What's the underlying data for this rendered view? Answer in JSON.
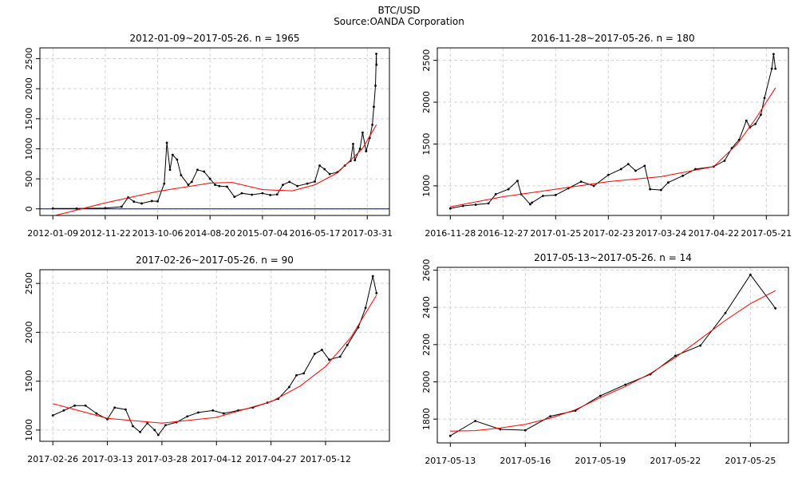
{
  "title": "BTC/USD",
  "subtitle": "Source:OANDA Corporation",
  "chart_data": [
    {
      "type": "line",
      "title": "2012-01-09~2017-05-26. n = 1965",
      "xlim": [
        "2012-01-09",
        "2017-05-26"
      ],
      "ylim": [
        -110,
        2680
      ],
      "xticks": [
        "2012-01-09",
        "2012-11-22",
        "2013-10-06",
        "2014-08-20",
        "2015-07-04",
        "2016-05-17",
        "2017-03-31"
      ],
      "yticks": [
        0,
        500,
        1000,
        1500,
        2000,
        2500
      ],
      "grid": true,
      "hline": 0,
      "hline_color": "#00008b",
      "series": [
        {
          "color": "#000000",
          "markers": true,
          "x": [
            "2012-01-09",
            "2012-06-01",
            "2012-11-22",
            "2013-03-01",
            "2013-04-10",
            "2013-05-15",
            "2013-07-01",
            "2013-09-01",
            "2013-10-06",
            "2013-11-15",
            "2013-12-01",
            "2013-12-20",
            "2014-01-05",
            "2014-02-01",
            "2014-02-25",
            "2014-04-10",
            "2014-05-01",
            "2014-06-05",
            "2014-07-15",
            "2014-08-20",
            "2014-09-20",
            "2014-10-15",
            "2014-12-01",
            "2015-01-15",
            "2015-03-01",
            "2015-05-01",
            "2015-07-04",
            "2015-08-20",
            "2015-10-01",
            "2015-11-05",
            "2015-12-15",
            "2016-02-01",
            "2016-04-01",
            "2016-05-17",
            "2016-06-15",
            "2016-07-15",
            "2016-08-15",
            "2016-10-01",
            "2016-11-15",
            "2016-12-20",
            "2017-01-04",
            "2017-01-15",
            "2017-02-15",
            "2017-03-03",
            "2017-03-24",
            "2017-04-15",
            "2017-05-01",
            "2017-05-10",
            "2017-05-20",
            "2017-05-25",
            "2017-05-26"
          ],
          "values": [
            7,
            5,
            12,
            35,
            190,
            120,
            90,
            130,
            125,
            420,
            1100,
            650,
            900,
            820,
            560,
            400,
            450,
            650,
            620,
            500,
            400,
            380,
            370,
            200,
            260,
            235,
            260,
            230,
            240,
            400,
            450,
            380,
            420,
            455,
            720,
            660,
            580,
            610,
            720,
            800,
            1080,
            810,
            1000,
            1270,
            960,
            1180,
            1400,
            1700,
            2050,
            2580,
            2400
          ]
        },
        {
          "color": "#ff0000",
          "markers": false,
          "x": [
            "2012-01-09",
            "2012-11-22",
            "2013-10-06",
            "2014-08-20",
            "2015-01-01",
            "2015-07-04",
            "2016-01-01",
            "2016-05-17",
            "2016-10-01",
            "2017-03-01",
            "2017-05-26"
          ],
          "values": [
            -120,
            100,
            290,
            430,
            440,
            320,
            300,
            400,
            600,
            1000,
            1400
          ]
        }
      ]
    },
    {
      "type": "line",
      "title": "2016-11-28~2017-05-26. n = 180",
      "xlim": [
        "2016-11-28",
        "2017-05-26"
      ],
      "ylim": [
        646,
        2649
      ],
      "xticks": [
        "2016-11-28",
        "2016-12-27",
        "2017-01-25",
        "2017-02-23",
        "2017-03-24",
        "2017-04-22",
        "2017-05-21"
      ],
      "yticks": [
        1000,
        1500,
        2000,
        2500
      ],
      "grid": true,
      "series": [
        {
          "color": "#000000",
          "markers": true,
          "x": [
            "2016-11-28",
            "2016-12-05",
            "2016-12-12",
            "2016-12-19",
            "2016-12-23",
            "2016-12-30",
            "2017-01-04",
            "2017-01-06",
            "2017-01-11",
            "2017-01-12",
            "2017-01-18",
            "2017-01-25",
            "2017-02-01",
            "2017-02-08",
            "2017-02-15",
            "2017-02-23",
            "2017-03-02",
            "2017-03-06",
            "2017-03-10",
            "2017-03-15",
            "2017-03-18",
            "2017-03-24",
            "2017-03-28",
            "2017-04-05",
            "2017-04-12",
            "2017-04-22",
            "2017-04-28",
            "2017-05-02",
            "2017-05-06",
            "2017-05-10",
            "2017-05-12",
            "2017-05-15",
            "2017-05-18",
            "2017-05-20",
            "2017-05-24",
            "2017-05-25",
            "2017-05-26"
          ],
          "values": [
            730,
            760,
            775,
            790,
            900,
            960,
            1060,
            900,
            780,
            800,
            880,
            890,
            970,
            1050,
            1000,
            1130,
            1200,
            1260,
            1180,
            1240,
            960,
            950,
            1040,
            1120,
            1200,
            1230,
            1300,
            1450,
            1550,
            1780,
            1700,
            1740,
            1850,
            2050,
            2400,
            2575,
            2400
          ]
        },
        {
          "color": "#ff0000",
          "markers": false,
          "x": [
            "2016-11-28",
            "2016-12-27",
            "2017-01-25",
            "2017-02-23",
            "2017-03-24",
            "2017-04-22",
            "2017-05-05",
            "2017-05-15",
            "2017-05-26"
          ],
          "values": [
            750,
            870,
            960,
            1050,
            1110,
            1230,
            1500,
            1800,
            2170
          ]
        }
      ]
    },
    {
      "type": "line",
      "title": "2017-02-26~2017-05-26. n = 90",
      "xlim": [
        "2017-02-26",
        "2017-05-26"
      ],
      "ylim": [
        885,
        2640
      ],
      "xticks": [
        "2017-02-26",
        "2017-03-13",
        "2017-03-28",
        "2017-04-12",
        "2017-04-27",
        "2017-05-12"
      ],
      "yticks": [
        1000,
        1500,
        2000,
        2500
      ],
      "grid": true,
      "series": [
        {
          "color": "#000000",
          "markers": true,
          "x": [
            "2017-02-26",
            "2017-03-01",
            "2017-03-04",
            "2017-03-07",
            "2017-03-10",
            "2017-03-13",
            "2017-03-15",
            "2017-03-18",
            "2017-03-20",
            "2017-03-22",
            "2017-03-24",
            "2017-03-26",
            "2017-03-27",
            "2017-03-29",
            "2017-04-01",
            "2017-04-04",
            "2017-04-07",
            "2017-04-11",
            "2017-04-14",
            "2017-04-18",
            "2017-04-22",
            "2017-04-26",
            "2017-04-29",
            "2017-05-02",
            "2017-05-04",
            "2017-05-06",
            "2017-05-09",
            "2017-05-11",
            "2017-05-13",
            "2017-05-16",
            "2017-05-18",
            "2017-05-21",
            "2017-05-23",
            "2017-05-25",
            "2017-05-26"
          ],
          "values": [
            1150,
            1200,
            1250,
            1250,
            1170,
            1110,
            1230,
            1210,
            1040,
            980,
            1070,
            1000,
            950,
            1050,
            1080,
            1140,
            1180,
            1200,
            1170,
            1200,
            1230,
            1280,
            1320,
            1440,
            1560,
            1580,
            1780,
            1820,
            1720,
            1750,
            1870,
            2050,
            2250,
            2575,
            2400
          ]
        },
        {
          "color": "#ff0000",
          "markers": false,
          "x": [
            "2017-02-26",
            "2017-03-13",
            "2017-03-28",
            "2017-04-12",
            "2017-04-27",
            "2017-05-05",
            "2017-05-12",
            "2017-05-19",
            "2017-05-26"
          ],
          "values": [
            1270,
            1120,
            1070,
            1130,
            1290,
            1450,
            1650,
            1950,
            2380
          ]
        }
      ]
    },
    {
      "type": "line",
      "title": "2017-05-13~2017-05-26. n = 14",
      "xlim": [
        "2017-05-13",
        "2017-05-26"
      ],
      "ylim": [
        1672,
        2615
      ],
      "xticks": [
        "2017-05-13",
        "2017-05-16",
        "2017-05-19",
        "2017-05-22",
        "2017-05-25"
      ],
      "yticks": [
        1800,
        2000,
        2200,
        2400,
        2600
      ],
      "grid": true,
      "series": [
        {
          "color": "#000000",
          "markers": true,
          "x": [
            "2017-05-13",
            "2017-05-14",
            "2017-05-15",
            "2017-05-16",
            "2017-05-17",
            "2017-05-18",
            "2017-05-19",
            "2017-05-20",
            "2017-05-21",
            "2017-05-22",
            "2017-05-23",
            "2017-05-24",
            "2017-05-25",
            "2017-05-26"
          ],
          "values": [
            1710,
            1790,
            1745,
            1740,
            1815,
            1845,
            1925,
            1985,
            2040,
            2140,
            2195,
            2370,
            2575,
            2395
          ]
        },
        {
          "color": "#ff0000",
          "markers": false,
          "x": [
            "2017-05-13",
            "2017-05-14",
            "2017-05-15",
            "2017-05-16",
            "2017-05-17",
            "2017-05-18",
            "2017-05-19",
            "2017-05-20",
            "2017-05-21",
            "2017-05-22",
            "2017-05-23",
            "2017-05-24",
            "2017-05-25",
            "2017-05-26"
          ],
          "values": [
            1735,
            1738,
            1752,
            1772,
            1805,
            1850,
            1915,
            1975,
            2045,
            2130,
            2230,
            2330,
            2420,
            2490
          ]
        }
      ]
    }
  ]
}
